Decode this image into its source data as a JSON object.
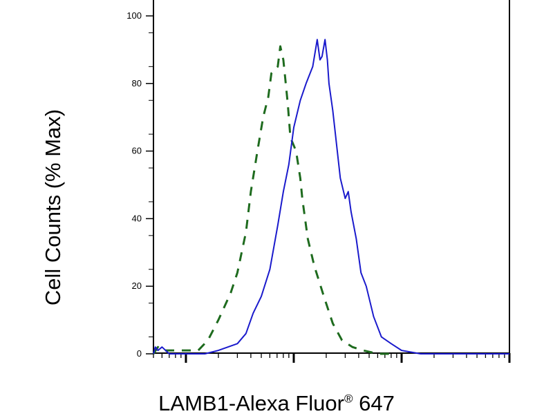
{
  "chart_data": {
    "type": "line",
    "title": "",
    "xlabel": "LAMB1-Alexa Fluor",
    "xlabel_mark": "®",
    "xlabel_suffix": "647",
    "ylabel": "Cell Counts (% Max)",
    "x_scale": "log",
    "xlim": [
      0.5,
      1000
    ],
    "ylim": [
      0,
      100
    ],
    "y_ticks": [
      0,
      20,
      40,
      60,
      80,
      100
    ],
    "x_tick_labels": [],
    "grid": false,
    "legend": "none",
    "colors": {
      "solid": "#1a1acc",
      "dashed": "#1e6b1e",
      "axis": "#000000"
    },
    "series": [
      {
        "style": "dashed",
        "x": [
          0.5,
          0.55,
          0.6,
          0.7,
          0.8,
          1.0,
          1.3,
          1.6,
          2.0,
          2.6,
          3.0,
          3.6,
          4.0,
          4.6,
          5.2,
          5.8,
          6.2,
          6.6,
          7.1,
          7.5,
          8.0,
          8.3,
          8.8,
          9.3,
          10.5,
          11.5,
          12.0,
          13.5,
          15.5,
          19,
          23,
          28,
          35,
          44,
          60,
          90
        ],
        "values": [
          0,
          2,
          1,
          1,
          1,
          1,
          1,
          4,
          10,
          18,
          24,
          36,
          48,
          60,
          70,
          76,
          83,
          84,
          85,
          91,
          87,
          82,
          74,
          64,
          60,
          52,
          46,
          34,
          26,
          17,
          9,
          4,
          2,
          1,
          0,
          0
        ]
      },
      {
        "style": "solid",
        "x": [
          0.5,
          0.52,
          0.55,
          0.6,
          0.7,
          0.85,
          1.0,
          1.5,
          2.0,
          3.0,
          3.6,
          4.2,
          5.0,
          6.0,
          7.1,
          8.0,
          9.0,
          10.0,
          11.5,
          13.0,
          15.0,
          16.5,
          17.5,
          18.3,
          19.5,
          20.5,
          21.2,
          23.0,
          27,
          30,
          32,
          34,
          38,
          42,
          47,
          55,
          65,
          80,
          100,
          150,
          250,
          400,
          700,
          1000
        ],
        "values": [
          0,
          2,
          1,
          2,
          0,
          0,
          0,
          0,
          1,
          3,
          6,
          12,
          17,
          25,
          38,
          48,
          56,
          67,
          75,
          80,
          85,
          93,
          87,
          88,
          93,
          87,
          80,
          72,
          52,
          46,
          48,
          42,
          34,
          24,
          20,
          11,
          5,
          3,
          1,
          0,
          0,
          0,
          0,
          0
        ]
      }
    ]
  }
}
